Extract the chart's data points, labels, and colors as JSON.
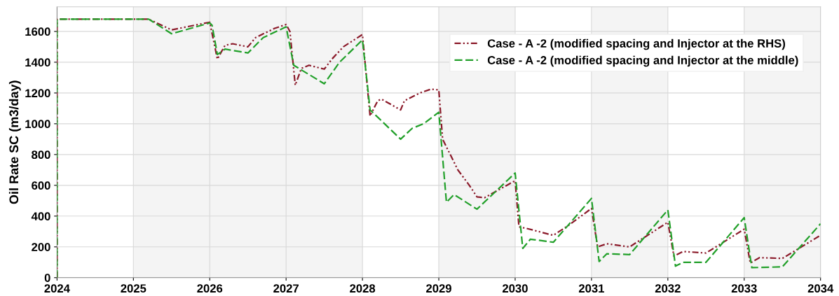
{
  "chart_data": {
    "type": "line",
    "ylabel": "Oil Rate SC (m3/day)",
    "xlim": [
      2024,
      2034
    ],
    "ylim": [
      0,
      1760
    ],
    "xticks": [
      2024,
      2025,
      2026,
      2027,
      2028,
      2029,
      2030,
      2031,
      2032,
      2033,
      2034
    ],
    "yticks": [
      0,
      200,
      400,
      600,
      800,
      1000,
      1200,
      1400,
      1600
    ],
    "grid": true,
    "legend": "top right",
    "bands": [
      {
        "axis": "x",
        "from": 2025,
        "to": 2028,
        "color": "#f4f4f4"
      },
      {
        "axis": "x",
        "from": 2029,
        "to": 2030,
        "color": "#f4f4f4"
      },
      {
        "axis": "x",
        "from": 2031,
        "to": 2032,
        "color": "#f4f4f4"
      },
      {
        "axis": "x",
        "from": 2033,
        "to": 2034,
        "color": "#f4f4f4"
      }
    ],
    "series": [
      {
        "name": "Case - A -2 (modified spacing and Injector at the RHS)",
        "color": "#8b1a2a",
        "line_style": "dashdot",
        "x": [
          2024,
          2024,
          2025.2,
          2025.5,
          2026.0,
          2026.1,
          2026.2,
          2026.3,
          2026.5,
          2026.6,
          2026.85,
          2027.0,
          2027.05,
          2027.12,
          2027.2,
          2027.3,
          2027.5,
          2027.6,
          2027.75,
          2028.0,
          2028.1,
          2028.2,
          2028.25,
          2028.5,
          2028.55,
          2028.75,
          2028.9,
          2029.0,
          2029.05,
          2029.15,
          2029.25,
          2029.4,
          2029.5,
          2029.6,
          2030.0,
          2030.05,
          2030.15,
          2030.5,
          2030.7,
          2031.0,
          2031.08,
          2031.2,
          2031.5,
          2032.0,
          2032.08,
          2032.2,
          2032.5,
          2033.0,
          2033.08,
          2033.2,
          2033.5,
          2034.0
        ],
        "values": [
          0,
          1680,
          1680,
          1610,
          1660,
          1420,
          1510,
          1520,
          1500,
          1560,
          1620,
          1645,
          1600,
          1250,
          1360,
          1380,
          1355,
          1420,
          1500,
          1580,
          1050,
          1150,
          1160,
          1090,
          1150,
          1200,
          1225,
          1220,
          900,
          800,
          700,
          600,
          525,
          520,
          630,
          330,
          320,
          275,
          340,
          450,
          200,
          220,
          200,
          360,
          140,
          170,
          160,
          315,
          95,
          130,
          125,
          275
        ]
      },
      {
        "name": "Case - A -2 (modified spacing and Injector at the middle)",
        "color": "#22a02a",
        "line_style": "dashed",
        "x": [
          2024,
          2024,
          2025.2,
          2025.5,
          2026.0,
          2026.03,
          2026.1,
          2026.2,
          2026.5,
          2026.7,
          2027.0,
          2027.1,
          2027.5,
          2027.7,
          2028.0,
          2028.1,
          2028.5,
          2028.65,
          2028.8,
          2029.0,
          2029.1,
          2029.2,
          2029.5,
          2030.0,
          2030.1,
          2030.2,
          2030.5,
          2031.0,
          2031.1,
          2031.2,
          2031.5,
          2032.0,
          2032.1,
          2032.2,
          2032.5,
          2033.0,
          2033.1,
          2033.5,
          2034.0
        ],
        "values": [
          0,
          1680,
          1680,
          1585,
          1655,
          1640,
          1450,
          1485,
          1460,
          1560,
          1630,
          1380,
          1260,
          1400,
          1545,
          1090,
          900,
          970,
          1000,
          1075,
          490,
          540,
          445,
          680,
          190,
          250,
          230,
          515,
          105,
          155,
          150,
          440,
          75,
          100,
          100,
          390,
          65,
          70,
          350
        ]
      }
    ]
  }
}
